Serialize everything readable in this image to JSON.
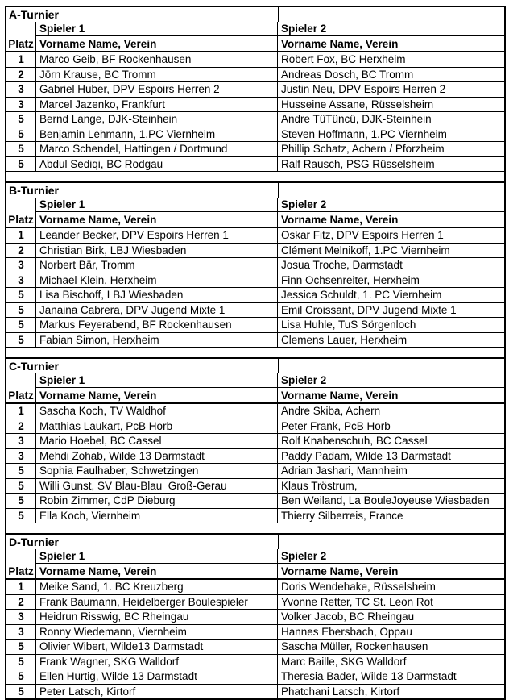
{
  "columns": {
    "platz": "Platz",
    "spieler1": "Spieler 1",
    "spieler2": "Spieler 2",
    "subheader": "Vorname Name, Verein"
  },
  "tournaments": [
    {
      "title": "A-Turnier",
      "rows": [
        {
          "platz": "1",
          "spieler1": "Marco Geib, BF Rockenhausen",
          "spieler2": "Robert Fox, BC Herxheim"
        },
        {
          "platz": "2",
          "spieler1": "Jörn Krause, BC Tromm",
          "spieler2": "Andreas Dosch, BC Tromm"
        },
        {
          "platz": "3",
          "spieler1": "Gabriel Huber, DPV Espoirs Herren 2",
          "spieler2": "Justin Neu, DPV Espoirs Herren 2"
        },
        {
          "platz": "3",
          "spieler1": "Marcel Jazenko, Frankfurt",
          "spieler2": "Husseine Assane, Rüsselsheim"
        },
        {
          "platz": "5",
          "spieler1": "Bernd Lange, DJK-Steinhein",
          "spieler2": "Andre TüTüncü, DJK-Steinhein"
        },
        {
          "platz": "5",
          "spieler1": "Benjamin Lehmann, 1.PC Viernheim",
          "spieler2": "Steven Hoffmann, 1.PC Viernheim"
        },
        {
          "platz": "5",
          "spieler1": "Marco Schendel, Hattingen / Dortmund",
          "spieler2": "Phillip Schatz, Achern / Pforzheim"
        },
        {
          "platz": "5",
          "spieler1": "Abdul Sediqi, BC Rodgau",
          "spieler2": "Ralf Rausch, PSG Rüsselsheim"
        }
      ]
    },
    {
      "title": "B-Turnier",
      "rows": [
        {
          "platz": "1",
          "spieler1": "Leander Becker, DPV Espoirs Herren 1",
          "spieler2": "Oskar Fitz, DPV Espoirs Herren 1"
        },
        {
          "platz": "2",
          "spieler1": "Christian Birk, LBJ Wiesbaden",
          "spieler2": "Clément Melnikoff, 1.PC Viernheim"
        },
        {
          "platz": "3",
          "spieler1": "Norbert Bär, Tromm",
          "spieler2": "Josua Troche, Darmstadt"
        },
        {
          "platz": "3",
          "spieler1": "Michael Klein, Herxheim",
          "spieler2": "Finn Ochsenreiter, Herxheim"
        },
        {
          "platz": "5",
          "spieler1": "Lisa Bischoff, LBJ Wiesbaden",
          "spieler2": "Jessica Schuldt, 1. PC Viernheim"
        },
        {
          "platz": "5",
          "spieler1": "Janaina Cabrera, DPV Jugend Mixte 1",
          "spieler2": "Emil Croissant, DPV Jugend Mixte 1"
        },
        {
          "platz": "5",
          "spieler1": "Markus Feyerabend, BF Rockenhausen",
          "spieler2": "Lisa Huhle, TuS Sörgenloch"
        },
        {
          "platz": "5",
          "spieler1": "Fabian Simon, Herxheim",
          "spieler2": "Clemens Lauer, Herxheim"
        }
      ]
    },
    {
      "title": "C-Turnier",
      "rows": [
        {
          "platz": "1",
          "spieler1": "Sascha Koch, TV Waldhof",
          "spieler2": "Andre Skiba, Achern"
        },
        {
          "platz": "2",
          "spieler1": "Matthias Laukart, PcB Horb",
          "spieler2": "Peter Frank, PcB Horb"
        },
        {
          "platz": "3",
          "spieler1": "Mario Hoebel, BC Cassel",
          "spieler2": "Rolf Knabenschuh, BC Cassel"
        },
        {
          "platz": "3",
          "spieler1": "Mehdi Zohab, Wilde 13 Darmstadt",
          "spieler2": "Paddy Padam, Wilde 13 Darmstadt"
        },
        {
          "platz": "5",
          "spieler1": "Sophia Faulhaber, Schwetzingen",
          "spieler2": "Adrian Jashari, Mannheim"
        },
        {
          "platz": "5",
          "spieler1": "Willi Gunst, SV Blau-Blau  Groß-Gerau",
          "spieler2": "Klaus Tröstrum,"
        },
        {
          "platz": "5",
          "spieler1": "Robin Zimmer, CdP Dieburg",
          "spieler2": "Ben Weiland, La BouleJoyeuse Wiesbaden"
        },
        {
          "platz": "5",
          "spieler1": "Ella Koch, Viernheim",
          "spieler2": "Thierry Silberreis, France"
        }
      ]
    },
    {
      "title": "D-Turnier",
      "rows": [
        {
          "platz": "1",
          "spieler1": "Meike Sand, 1. BC Kreuzberg",
          "spieler2": "Doris Wendehake, Rüsselsheim"
        },
        {
          "platz": "2",
          "spieler1": "Frank Baumann, Heidelberger Boulespieler",
          "spieler2": "Yvonne Retter, TC St. Leon Rot"
        },
        {
          "platz": "3",
          "spieler1": "Heidrun Risswig, BC Rheingau",
          "spieler2": "Volker Jacob, BC Rheingau"
        },
        {
          "platz": "3",
          "spieler1": "Ronny Wiedemann, Viernheim",
          "spieler2": "Hannes Ebersbach, Oppau"
        },
        {
          "platz": "5",
          "spieler1": "Olivier Wibert, Wilde13 Darmstadt",
          "spieler2": "Sascha Müller, Rockenhausen"
        },
        {
          "platz": "5",
          "spieler1": "Frank Wagner, SKG Walldorf",
          "spieler2": "Marc Baille, SKG Walldorf"
        },
        {
          "platz": "5",
          "spieler1": "Ellen Hurtig, Wilde 13 Darmstadt",
          "spieler2": "Theresia Bader, Wilde 13 Darmstadt"
        },
        {
          "platz": "5",
          "spieler1": "Peter Latsch, Kirtorf",
          "spieler2": "Phatchani Latsch, Kirtorf"
        }
      ]
    }
  ]
}
